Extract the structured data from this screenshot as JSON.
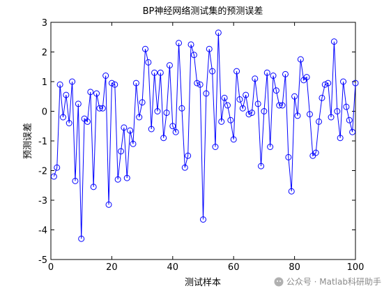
{
  "chart_data": {
    "type": "line",
    "title": "BP神经网络测试集的预测误差",
    "xlabel": "测试样本",
    "ylabel": "预测误差",
    "xlim": [
      0,
      100
    ],
    "ylim": [
      -5,
      3
    ],
    "xticks": [
      "0",
      "20",
      "40",
      "60",
      "80",
      "100"
    ],
    "yticks": [
      "-5",
      "-4",
      "-3",
      "-2",
      "-1",
      "0",
      "1",
      "2",
      "3"
    ],
    "grid": false,
    "marker": "circle",
    "line_color": "#0000ff",
    "series": [
      {
        "x": [
          1,
          2,
          3,
          4,
          5,
          6,
          7,
          8,
          9,
          10,
          11,
          12,
          13,
          14,
          15,
          16,
          17,
          18,
          19,
          20,
          21,
          22,
          23,
          24,
          25,
          26,
          27,
          28,
          29,
          30,
          31,
          32,
          33,
          34,
          35,
          36,
          37,
          38,
          39,
          40,
          41,
          42,
          43,
          44,
          45,
          46,
          47,
          48,
          49,
          50,
          51,
          52,
          53,
          54,
          55,
          56,
          57,
          58,
          59,
          60,
          61,
          62,
          63,
          64,
          65,
          66,
          67,
          68,
          69,
          70,
          71,
          72,
          73,
          74,
          75,
          76,
          77,
          78,
          79,
          80,
          81,
          82,
          83,
          84,
          85,
          86,
          87,
          88,
          89,
          90,
          91,
          92,
          93,
          94,
          95,
          96,
          97,
          98,
          99,
          100
        ],
        "values": [
          -2.2,
          -1.9,
          0.9,
          -0.2,
          0.55,
          -0.4,
          1.0,
          -2.35,
          0.25,
          -4.3,
          -0.25,
          -0.35,
          0.65,
          -2.55,
          0.6,
          0.1,
          0.1,
          1.2,
          -3.15,
          0.95,
          0.9,
          -2.3,
          -1.35,
          -0.55,
          -2.25,
          -0.65,
          -1.1,
          0.95,
          -0.2,
          0.3,
          2.1,
          1.65,
          -0.6,
          1.3,
          0.0,
          1.3,
          -0.9,
          -0.05,
          1.55,
          -0.5,
          -0.7,
          2.3,
          0.1,
          -1.9,
          -1.5,
          2.25,
          1.9,
          0.95,
          0.9,
          -3.65,
          0.6,
          2.1,
          1.35,
          -1.2,
          2.65,
          -0.35,
          0.45,
          0.2,
          -0.3,
          -0.95,
          1.35,
          0.4,
          0.1,
          0.55,
          -0.1,
          -0.05,
          1.1,
          0.25,
          -1.85,
          0.0,
          1.3,
          -1.2,
          1.2,
          0.7,
          0.2,
          0.2,
          1.25,
          -1.55,
          -2.7,
          0.5,
          -0.15,
          1.75,
          1.05,
          1.15,
          -0.1,
          -1.5,
          -1.4,
          -0.35,
          0.45,
          0.9,
          0.95,
          -0.2,
          2.35,
          0.0,
          -0.9,
          1.0,
          0.15,
          -0.3,
          -0.7,
          0.95
        ]
      }
    ]
  },
  "watermark": {
    "icon": "wechat-icon",
    "text": "公众号 · Matlab科研助手"
  }
}
